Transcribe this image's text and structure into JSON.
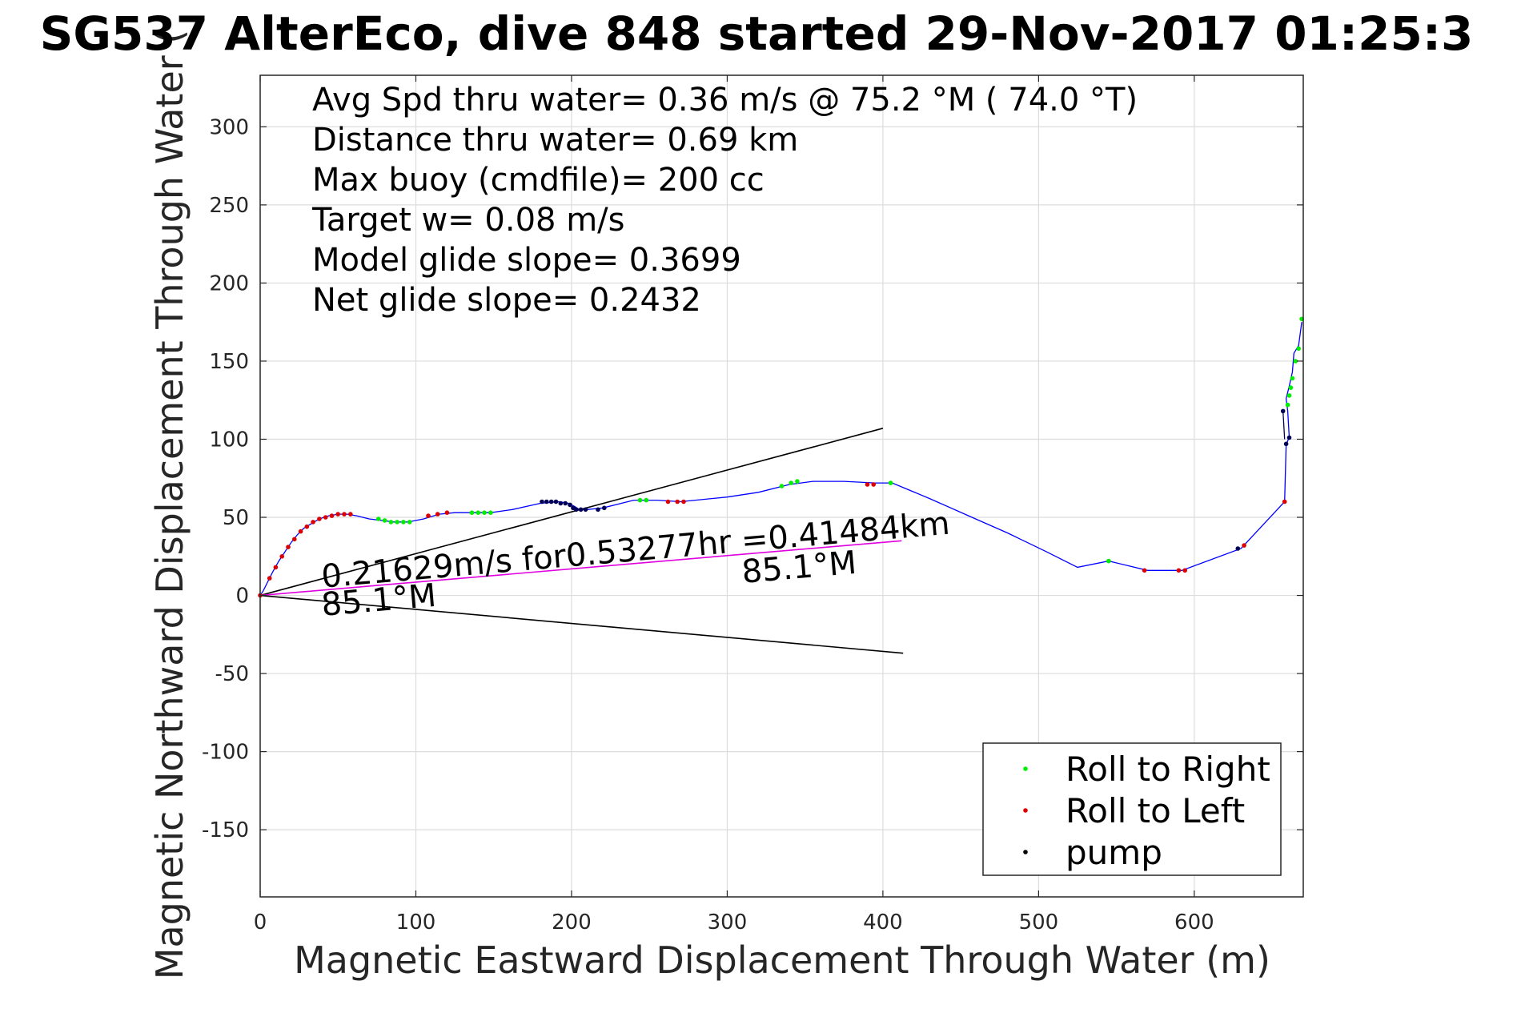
{
  "chart_data": {
    "type": "line",
    "title": "SG537 AlterEco, dive 848 started 29-Nov-2017 01:25:3",
    "xlabel": "Magnetic Eastward Displacement Through Water (m)",
    "ylabel": "Magnetic Northward Displacement Through Water (",
    "xlim": [
      0,
      670
    ],
    "ylim": [
      -193,
      333
    ],
    "xticks": [
      0,
      100,
      200,
      300,
      400,
      500,
      600
    ],
    "yticks": [
      -150,
      -100,
      -50,
      0,
      50,
      100,
      150,
      200,
      250,
      300
    ],
    "grid": true,
    "stats": [
      "Avg Spd thru water=  0.36 m/s @  75.2 °M ( 74.0 °T)",
      "Distance thru water=  0.69 km",
      "Max buoy (cmdfile)= 200 cc",
      "Target w= 0.08 m/s",
      "Model glide slope= 0.3699",
      "Net glide slope= 0.2432"
    ],
    "track": {
      "color": "#0000ff",
      "x": [
        0,
        2,
        5,
        8,
        12,
        16,
        20,
        24,
        28,
        33,
        38,
        44,
        50,
        56,
        62,
        70,
        78,
        86,
        95,
        105,
        115,
        125,
        135,
        148,
        162,
        180,
        192,
        198,
        202,
        205,
        210,
        220,
        240,
        255,
        270,
        300,
        320,
        340,
        355,
        375,
        395,
        406,
        430,
        455,
        480,
        505,
        525,
        545,
        570,
        592,
        630,
        658,
        659,
        660,
        661,
        660,
        659,
        661,
        663,
        664,
        667,
        669
      ],
      "y": [
        0,
        3,
        9,
        15,
        22,
        28,
        34,
        39,
        43,
        46,
        49,
        51,
        52,
        52,
        51,
        49,
        48,
        47,
        47,
        49,
        52,
        53,
        53,
        53,
        55,
        59,
        60,
        59,
        57,
        55,
        55,
        56,
        61,
        61,
        60,
        63,
        66,
        71,
        73,
        73,
        72,
        72,
        62,
        51,
        40,
        28,
        18,
        22,
        16,
        16,
        30,
        60,
        96,
        99,
        101,
        118,
        126,
        134,
        143,
        155,
        160,
        175
      ]
    },
    "roll_right": {
      "color": "#00ee00",
      "x": [
        76,
        80,
        84,
        88,
        92,
        96,
        136,
        140,
        144,
        148,
        244,
        248,
        335,
        341,
        345,
        405,
        545,
        660,
        661,
        662,
        663,
        665,
        667,
        669
      ],
      "y": [
        49,
        48,
        47,
        47,
        47,
        47,
        53,
        53,
        53,
        53,
        61,
        61,
        70,
        72,
        73,
        72,
        22,
        122,
        128,
        133,
        139,
        150,
        158,
        177
      ]
    },
    "roll_left": {
      "color": "#dd0000",
      "x": [
        0,
        6,
        10,
        14,
        18,
        22,
        26,
        30,
        34,
        38,
        42,
        46,
        50,
        54,
        58,
        108,
        114,
        120,
        262,
        268,
        272,
        390,
        394,
        568,
        590,
        594,
        632,
        658
      ],
      "y": [
        0,
        11,
        18,
        25,
        31,
        36,
        41,
        44,
        47,
        49,
        50,
        51,
        52,
        52,
        52,
        51,
        52,
        53,
        60,
        60,
        60,
        71,
        71,
        16,
        16,
        16,
        32,
        60
      ]
    },
    "pump": {
      "color": "#000055",
      "x": [
        181,
        184,
        187,
        190,
        193,
        196,
        199,
        201,
        203,
        206,
        209,
        217,
        221,
        628,
        657,
        659,
        661
      ],
      "y": [
        60,
        60,
        60,
        60,
        59,
        59,
        58,
        56,
        55,
        55,
        55,
        55,
        56,
        30,
        118,
        97,
        101
      ],
      "trail_x": [
        658,
        657
      ],
      "trail_y": [
        100,
        118
      ]
    },
    "mean_line": {
      "color": "#e000e0",
      "x": [
        0,
        412
      ],
      "y": [
        0,
        35
      ]
    },
    "cone_upper": {
      "color": "#000000",
      "x": [
        0,
        400
      ],
      "y": [
        0,
        107
      ]
    },
    "cone_lower": {
      "color": "#000000",
      "x": [
        0,
        413
      ],
      "y": [
        0,
        -37
      ]
    },
    "annotations": [
      {
        "text": "0.21629m/s for0.53277hr =0.41484km",
        "x": 40,
        "y": 5,
        "angle": -4.9
      },
      {
        "text": "85.1°M",
        "x": 40,
        "y": -13,
        "angle": -4.9
      },
      {
        "text": "85.1°M",
        "x": 310,
        "y": 8,
        "angle": -4.9
      }
    ],
    "legend": {
      "position": "bottom-right",
      "entries": [
        {
          "label": "Roll to Right",
          "color": "#00ee00"
        },
        {
          "label": "Roll to Left",
          "color": "#dd0000"
        },
        {
          "label": "pump",
          "color": "#000000"
        }
      ]
    }
  }
}
